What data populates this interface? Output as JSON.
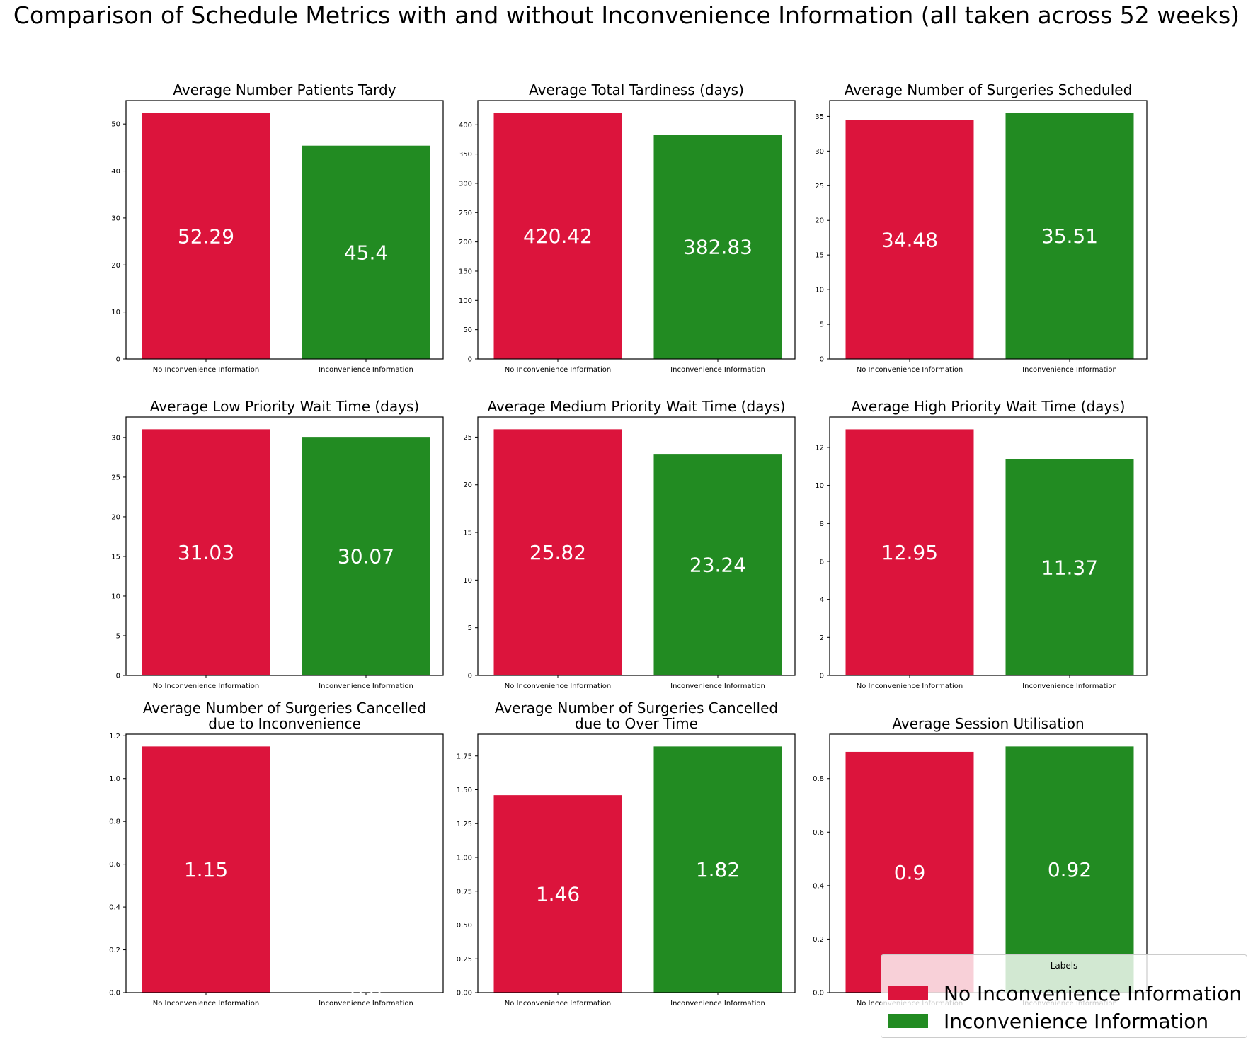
{
  "figure": {
    "title": "Comparison of Schedule Metrics with and without Inconvenience Information (all taken across 52 weeks)"
  },
  "colors": {
    "no_info": "#DC143C",
    "info": "#228B22",
    "value_label": "#ffffff",
    "axis": "#000000"
  },
  "legend": {
    "title": "Labels",
    "placement": "lower-right",
    "items": [
      {
        "label": "No Inconvenience Information",
        "color": "#DC143C"
      },
      {
        "label": "Inconvenience Information",
        "color": "#228B22"
      }
    ]
  },
  "chart_data": [
    {
      "type": "bar",
      "title": [
        "Average Number Patients Tardy"
      ],
      "categories": [
        "No Inconvenience Information",
        "Inconvenience Information"
      ],
      "values": [
        52.29,
        45.4
      ],
      "value_labels": [
        "52.29",
        "45.4"
      ],
      "ylim": [
        0,
        55
      ],
      "yticks": [
        0,
        10,
        20,
        30,
        40,
        50
      ],
      "ytick_labels": [
        "0",
        "10",
        "20",
        "30",
        "40",
        "50"
      ],
      "grid": false
    },
    {
      "type": "bar",
      "title": [
        "Average Total Tardiness (days)"
      ],
      "categories": [
        "No Inconvenience Information",
        "Inconvenience Information"
      ],
      "values": [
        420.42,
        382.83
      ],
      "value_labels": [
        "420.42",
        "382.83"
      ],
      "ylim": [
        0,
        441.44
      ],
      "yticks": [
        0,
        50,
        100,
        150,
        200,
        250,
        300,
        350,
        400
      ],
      "ytick_labels": [
        "0",
        "50",
        "100",
        "150",
        "200",
        "250",
        "300",
        "350",
        "400"
      ],
      "grid": false
    },
    {
      "type": "bar",
      "title": [
        "Average Number of Surgeries Scheduled"
      ],
      "categories": [
        "No Inconvenience Information",
        "Inconvenience Information"
      ],
      "values": [
        34.48,
        35.51
      ],
      "value_labels": [
        "34.48",
        "35.51"
      ],
      "ylim": [
        0,
        37.29
      ],
      "yticks": [
        0,
        5,
        10,
        15,
        20,
        25,
        30,
        35
      ],
      "ytick_labels": [
        "0",
        "5",
        "10",
        "15",
        "20",
        "25",
        "30",
        "35"
      ],
      "grid": false
    },
    {
      "type": "bar",
      "title": [
        "Average Low Priority Wait Time (days)"
      ],
      "categories": [
        "No Inconvenience Information",
        "Inconvenience Information"
      ],
      "values": [
        31.03,
        30.07
      ],
      "value_labels": [
        "31.03",
        "30.07"
      ],
      "ylim": [
        0,
        32.58
      ],
      "yticks": [
        0,
        5,
        10,
        15,
        20,
        25,
        30
      ],
      "ytick_labels": [
        "0",
        "5",
        "10",
        "15",
        "20",
        "25",
        "30"
      ],
      "grid": false
    },
    {
      "type": "bar",
      "title": [
        "Average Medium Priority Wait Time (days)"
      ],
      "categories": [
        "No Inconvenience Information",
        "Inconvenience Information"
      ],
      "values": [
        25.82,
        23.24
      ],
      "value_labels": [
        "25.82",
        "23.24"
      ],
      "ylim": [
        0,
        27.11
      ],
      "yticks": [
        0,
        5,
        10,
        15,
        20,
        25
      ],
      "ytick_labels": [
        "0",
        "5",
        "10",
        "15",
        "20",
        "25"
      ],
      "grid": false
    },
    {
      "type": "bar",
      "title": [
        "Average High Priority Wait Time (days)"
      ],
      "categories": [
        "No Inconvenience Information",
        "Inconvenience Information"
      ],
      "values": [
        12.95,
        11.37
      ],
      "value_labels": [
        "12.95",
        "11.37"
      ],
      "ylim": [
        0,
        13.6
      ],
      "yticks": [
        0,
        2,
        4,
        6,
        8,
        10,
        12
      ],
      "ytick_labels": [
        "0",
        "2",
        "4",
        "6",
        "8",
        "10",
        "12"
      ],
      "grid": false
    },
    {
      "type": "bar",
      "title": [
        "Average Number of Surgeries Cancelled",
        "due to Inconvenience"
      ],
      "categories": [
        "No Inconvenience Information",
        "Inconvenience Information"
      ],
      "values": [
        1.15,
        0.0
      ],
      "value_labels": [
        "1.15",
        "0.0"
      ],
      "ylim": [
        0,
        1.2075
      ],
      "yticks": [
        0.0,
        0.2,
        0.4,
        0.6,
        0.8,
        1.0,
        1.2
      ],
      "ytick_labels": [
        "0.0",
        "0.2",
        "0.4",
        "0.6",
        "0.8",
        "1.0",
        "1.2"
      ],
      "grid": false
    },
    {
      "type": "bar",
      "title": [
        "Average Number of Surgeries Cancelled",
        "due to Over Time"
      ],
      "categories": [
        "No Inconvenience Information",
        "Inconvenience Information"
      ],
      "values": [
        1.46,
        1.82
      ],
      "value_labels": [
        "1.46",
        "1.82"
      ],
      "ylim": [
        0,
        1.911
      ],
      "yticks": [
        0.0,
        0.25,
        0.5,
        0.75,
        1.0,
        1.25,
        1.5,
        1.75
      ],
      "ytick_labels": [
        "0.00",
        "0.25",
        "0.50",
        "0.75",
        "1.00",
        "1.25",
        "1.50",
        "1.75"
      ],
      "grid": false
    },
    {
      "type": "bar",
      "title": [
        "Average Session Utilisation"
      ],
      "categories": [
        "No Inconvenience Information",
        "Inconvenience Information"
      ],
      "values": [
        0.9,
        0.92
      ],
      "value_labels": [
        "0.9",
        "0.92"
      ],
      "ylim": [
        0,
        0.966
      ],
      "yticks": [
        0.0,
        0.2,
        0.4,
        0.6,
        0.8
      ],
      "ytick_labels": [
        "0.0",
        "0.2",
        "0.4",
        "0.6",
        "0.8"
      ],
      "grid": false
    }
  ]
}
